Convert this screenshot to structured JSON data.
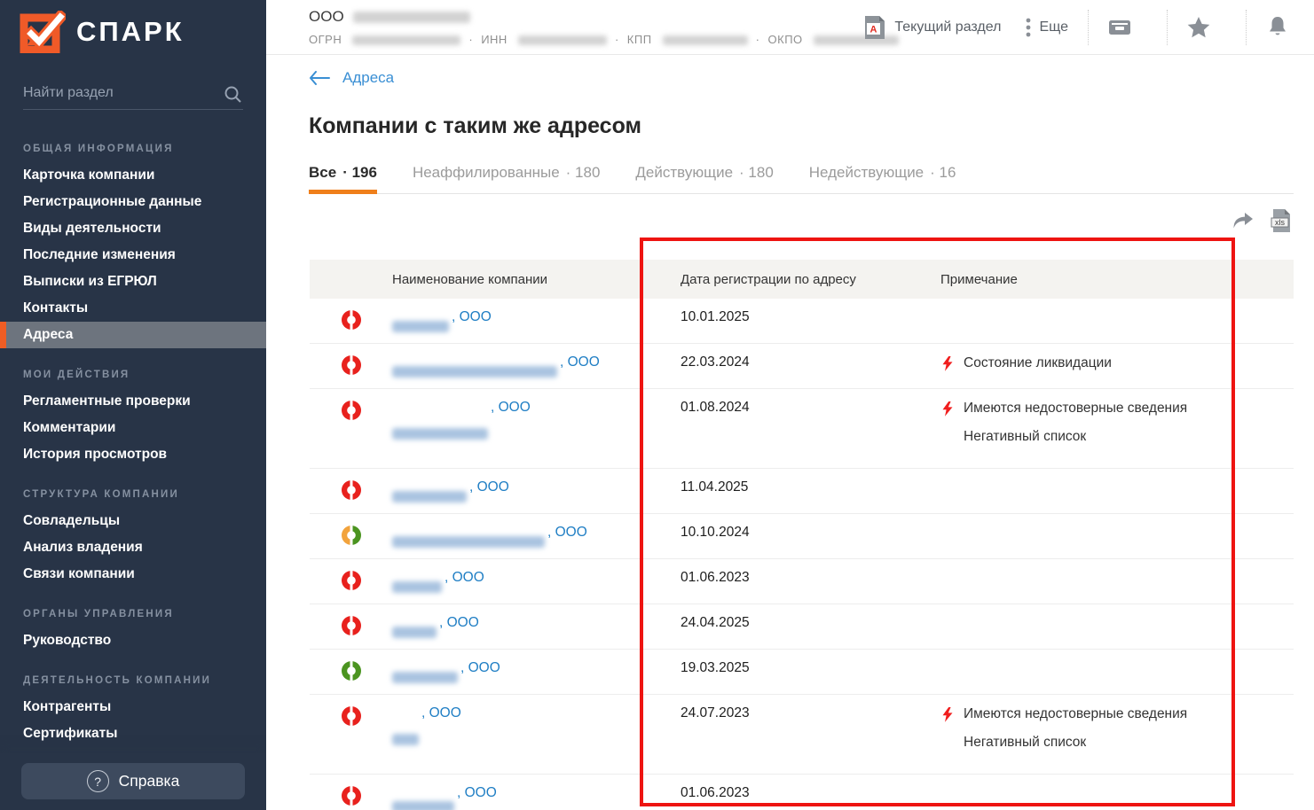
{
  "sidebar": {
    "logo_text": "СПАРК",
    "search_placeholder": "Найти раздел",
    "sections": [
      {
        "title": "ОБЩАЯ ИНФОРМАЦИЯ",
        "items": [
          {
            "id": "company-card",
            "label": "Карточка компании"
          },
          {
            "id": "registration-data",
            "label": "Регистрационные данные"
          },
          {
            "id": "activities",
            "label": "Виды деятельности"
          },
          {
            "id": "recent-changes",
            "label": "Последние изменения"
          },
          {
            "id": "egrul-extracts",
            "label": "Выписки из ЕГРЮЛ"
          },
          {
            "id": "contacts",
            "label": "Контакты"
          },
          {
            "id": "addresses",
            "label": "Адреса",
            "selected": true
          }
        ]
      },
      {
        "title": "МОИ ДЕЙСТВИЯ",
        "items": [
          {
            "id": "routine-checks",
            "label": "Регламентные проверки"
          },
          {
            "id": "comments",
            "label": "Комментарии"
          },
          {
            "id": "view-history",
            "label": "История просмотров"
          }
        ]
      },
      {
        "title": "СТРУКТУРА КОМПАНИИ",
        "items": [
          {
            "id": "co-owners",
            "label": "Совладельцы"
          },
          {
            "id": "ownership-analysis",
            "label": "Анализ владения"
          },
          {
            "id": "company-links",
            "label": "Связи компании"
          }
        ]
      },
      {
        "title": "ОРГАНЫ УПРАВЛЕНИЯ",
        "items": [
          {
            "id": "management",
            "label": "Руководство"
          }
        ]
      },
      {
        "title": "ДЕЯТЕЛЬНОСТЬ КОМПАНИИ",
        "items": [
          {
            "id": "counterparties",
            "label": "Контрагенты"
          },
          {
            "id": "certificates",
            "label": "Сертификаты"
          }
        ]
      }
    ],
    "help_label": "Справка",
    "help_icon_glyph": "?"
  },
  "header": {
    "company_prefix": "ООО",
    "company_name_redacted_width": 132,
    "registry": [
      {
        "label": "ОГРН",
        "blur_width": 122
      },
      {
        "label": "ИНН",
        "blur_width": 100
      },
      {
        "label": "КПП",
        "blur_width": 96
      },
      {
        "label": "ОКПО",
        "blur_width": 96
      }
    ],
    "separator": "·",
    "actions": {
      "current_section": "Текущий раздел",
      "more": "Еще",
      "pdf_letter": "A"
    }
  },
  "main": {
    "breadcrumb": "Адреса",
    "title": "Компании с таким же адресом",
    "tabs": [
      {
        "label": "Все",
        "count": "196",
        "active": true
      },
      {
        "label": "Неаффилированные",
        "count": "180",
        "active": false
      },
      {
        "label": "Действующие",
        "count": "180",
        "active": false
      },
      {
        "label": "Недействующие",
        "count": "16",
        "active": false
      }
    ],
    "export": {
      "xls_label": "xls"
    },
    "table": {
      "columns": [
        "Наименование компании",
        "Дата регистрации по адресу",
        "Примечание"
      ],
      "org_suffix": "ООО",
      "rows": [
        {
          "risk": {
            "left": "#e8211d",
            "right": "#e8211d"
          },
          "blur_width": 64,
          "date": "10.01.2025",
          "notes": []
        },
        {
          "risk": {
            "left": "#e8211d",
            "right": "#e8211d"
          },
          "blur_width": 186,
          "date": "22.03.2024",
          "notes": [
            "Состояние ликвидации"
          ]
        },
        {
          "risk": {
            "left": "#e8211d",
            "right": "#e8211d"
          },
          "blur_width": 108,
          "date": "01.08.2024",
          "notes": [
            "Имеются недостоверные сведения",
            "Негативный список"
          ]
        },
        {
          "risk": {
            "left": "#e8211d",
            "right": "#e8211d"
          },
          "blur_width": 84,
          "date": "11.04.2025",
          "notes": []
        },
        {
          "risk": {
            "left": "#f2a33c",
            "right": "#4b9420"
          },
          "blur_width": 172,
          "date": "10.10.2024",
          "notes": []
        },
        {
          "risk": {
            "left": "#e8211d",
            "right": "#e8211d"
          },
          "blur_width": 56,
          "date": "01.06.2023",
          "notes": []
        },
        {
          "risk": {
            "left": "#e8211d",
            "right": "#e8211d"
          },
          "blur_width": 50,
          "date": "24.04.2025",
          "notes": []
        },
        {
          "risk": {
            "left": "#4b9420",
            "right": "#4b9420"
          },
          "blur_width": 74,
          "date": "19.03.2025",
          "notes": []
        },
        {
          "risk": {
            "left": "#e8211d",
            "right": "#e8211d"
          },
          "blur_width": 30,
          "date": "24.07.2023",
          "notes": [
            "Имеются недостоверные сведения",
            "Негативный список"
          ]
        },
        {
          "risk": {
            "left": "#e8211d",
            "right": "#e8211d"
          },
          "blur_width": 70,
          "date": "01.06.2023",
          "notes": []
        }
      ]
    }
  },
  "colors": {
    "accent_orange": "#ef5d24",
    "tab_underline_orange": "#ef7f1b",
    "link_blue": "#1f7ec4",
    "risk_red": "#e8211d",
    "risk_orange": "#f2a33c",
    "risk_green": "#4b9420",
    "annotation_red": "#ee1411",
    "sidebar_bg": "#283447"
  }
}
